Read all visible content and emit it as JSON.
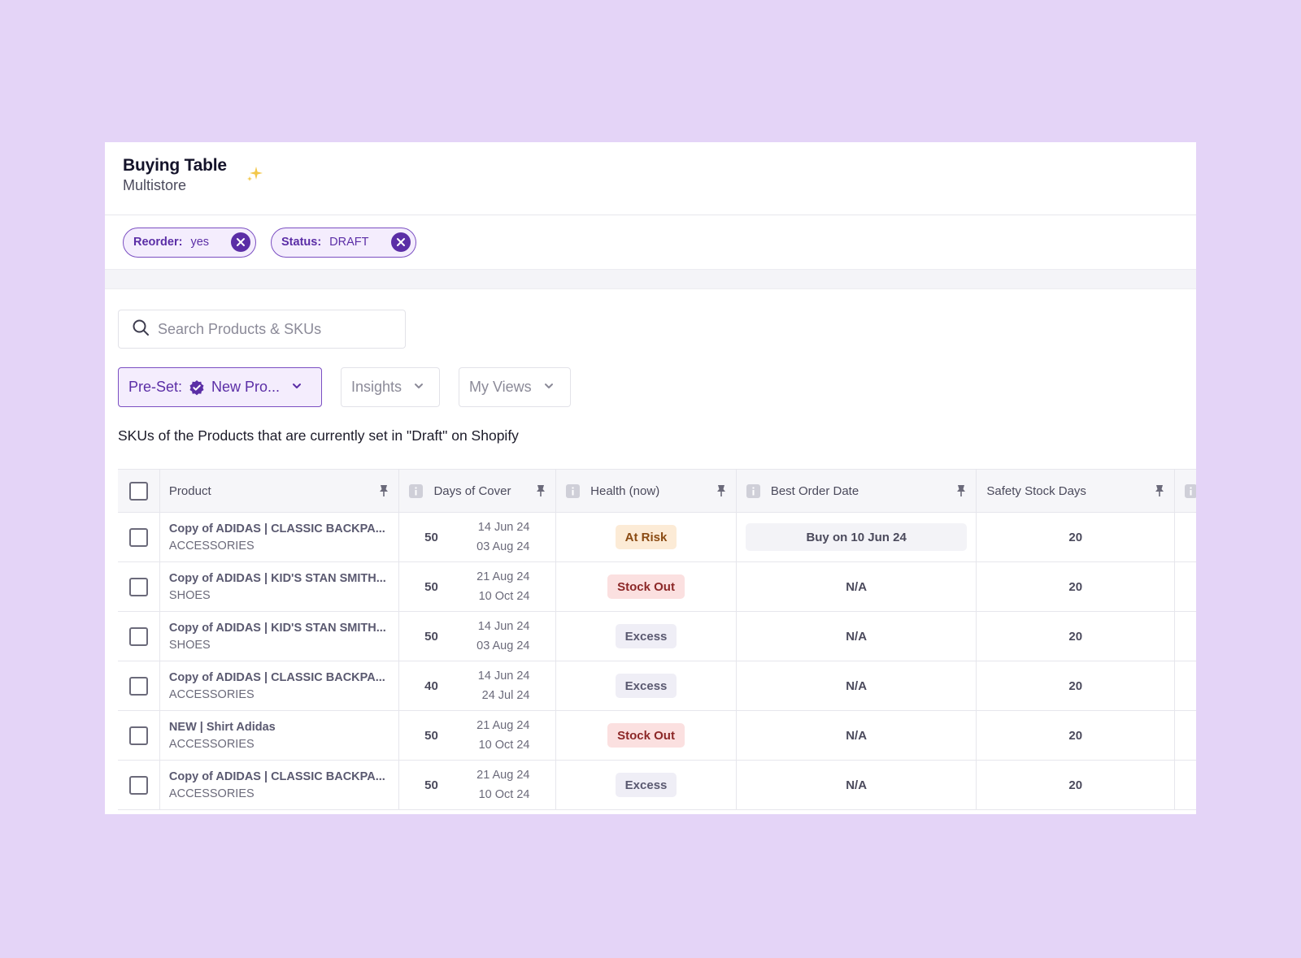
{
  "header": {
    "title": "Buying Table",
    "subtitle": "Multistore"
  },
  "filters": [
    {
      "key": "Reorder:",
      "value": "yes"
    },
    {
      "key": "Status:",
      "value": "DRAFT"
    }
  ],
  "search": {
    "placeholder": "Search Products & SKUs",
    "value": ""
  },
  "toolbar": {
    "preset_label": "Pre-Set:",
    "preset_value": "New Pro...",
    "insights_label": "Insights",
    "views_label": "My Views"
  },
  "description": "SKUs of the Products that are currently set in \"Draft\" on Shopify",
  "table": {
    "columns": {
      "product": "Product",
      "days_of_cover": "Days of Cover",
      "health": "Health (now)",
      "best_order_date": "Best Order Date",
      "safety_stock_days": "Safety Stock Days"
    },
    "rows": [
      {
        "product": "Copy of ADIDAS | CLASSIC BACKPA...",
        "category": "ACCESSORIES",
        "days": "50",
        "date_from": "14 Jun 24",
        "date_to": "03 Aug 24",
        "health": "At Risk",
        "health_type": "risk",
        "best_order": "Buy on 10 Jun 24",
        "safety": "20"
      },
      {
        "product": "Copy of ADIDAS | KID'S STAN SMITH...",
        "category": "SHOES",
        "days": "50",
        "date_from": "21 Aug 24",
        "date_to": "10 Oct 24",
        "health": "Stock Out",
        "health_type": "out",
        "best_order": "N/A",
        "safety": "20"
      },
      {
        "product": "Copy of ADIDAS | KID'S STAN SMITH...",
        "category": "SHOES",
        "days": "50",
        "date_from": "14 Jun 24",
        "date_to": "03 Aug 24",
        "health": "Excess",
        "health_type": "excess",
        "best_order": "N/A",
        "safety": "20"
      },
      {
        "product": "Copy of ADIDAS | CLASSIC BACKPA...",
        "category": "ACCESSORIES",
        "days": "40",
        "date_from": "14 Jun 24",
        "date_to": "24 Jul 24",
        "health": "Excess",
        "health_type": "excess",
        "best_order": "N/A",
        "safety": "20"
      },
      {
        "product": "NEW | Shirt Adidas",
        "category": "ACCESSORIES",
        "days": "50",
        "date_from": "21 Aug 24",
        "date_to": "10 Oct 24",
        "health": "Stock Out",
        "health_type": "out",
        "best_order": "N/A",
        "safety": "20"
      },
      {
        "product": "Copy of ADIDAS | CLASSIC BACKPA...",
        "category": "ACCESSORIES",
        "days": "50",
        "date_from": "21 Aug 24",
        "date_to": "10 Oct 24",
        "health": "Excess",
        "health_type": "excess",
        "best_order": "N/A",
        "safety": "20"
      }
    ]
  },
  "colors": {
    "background": "#e4d4f7",
    "accent": "#5b2ea6",
    "risk": "#fcebd6",
    "stock_out": "#fbe0e0",
    "excess": "#efeef6"
  },
  "icons": [
    "sparkle-icon",
    "close-icon",
    "search-icon",
    "verified-badge-icon",
    "chevron-down-icon",
    "info-icon",
    "pin-icon"
  ]
}
